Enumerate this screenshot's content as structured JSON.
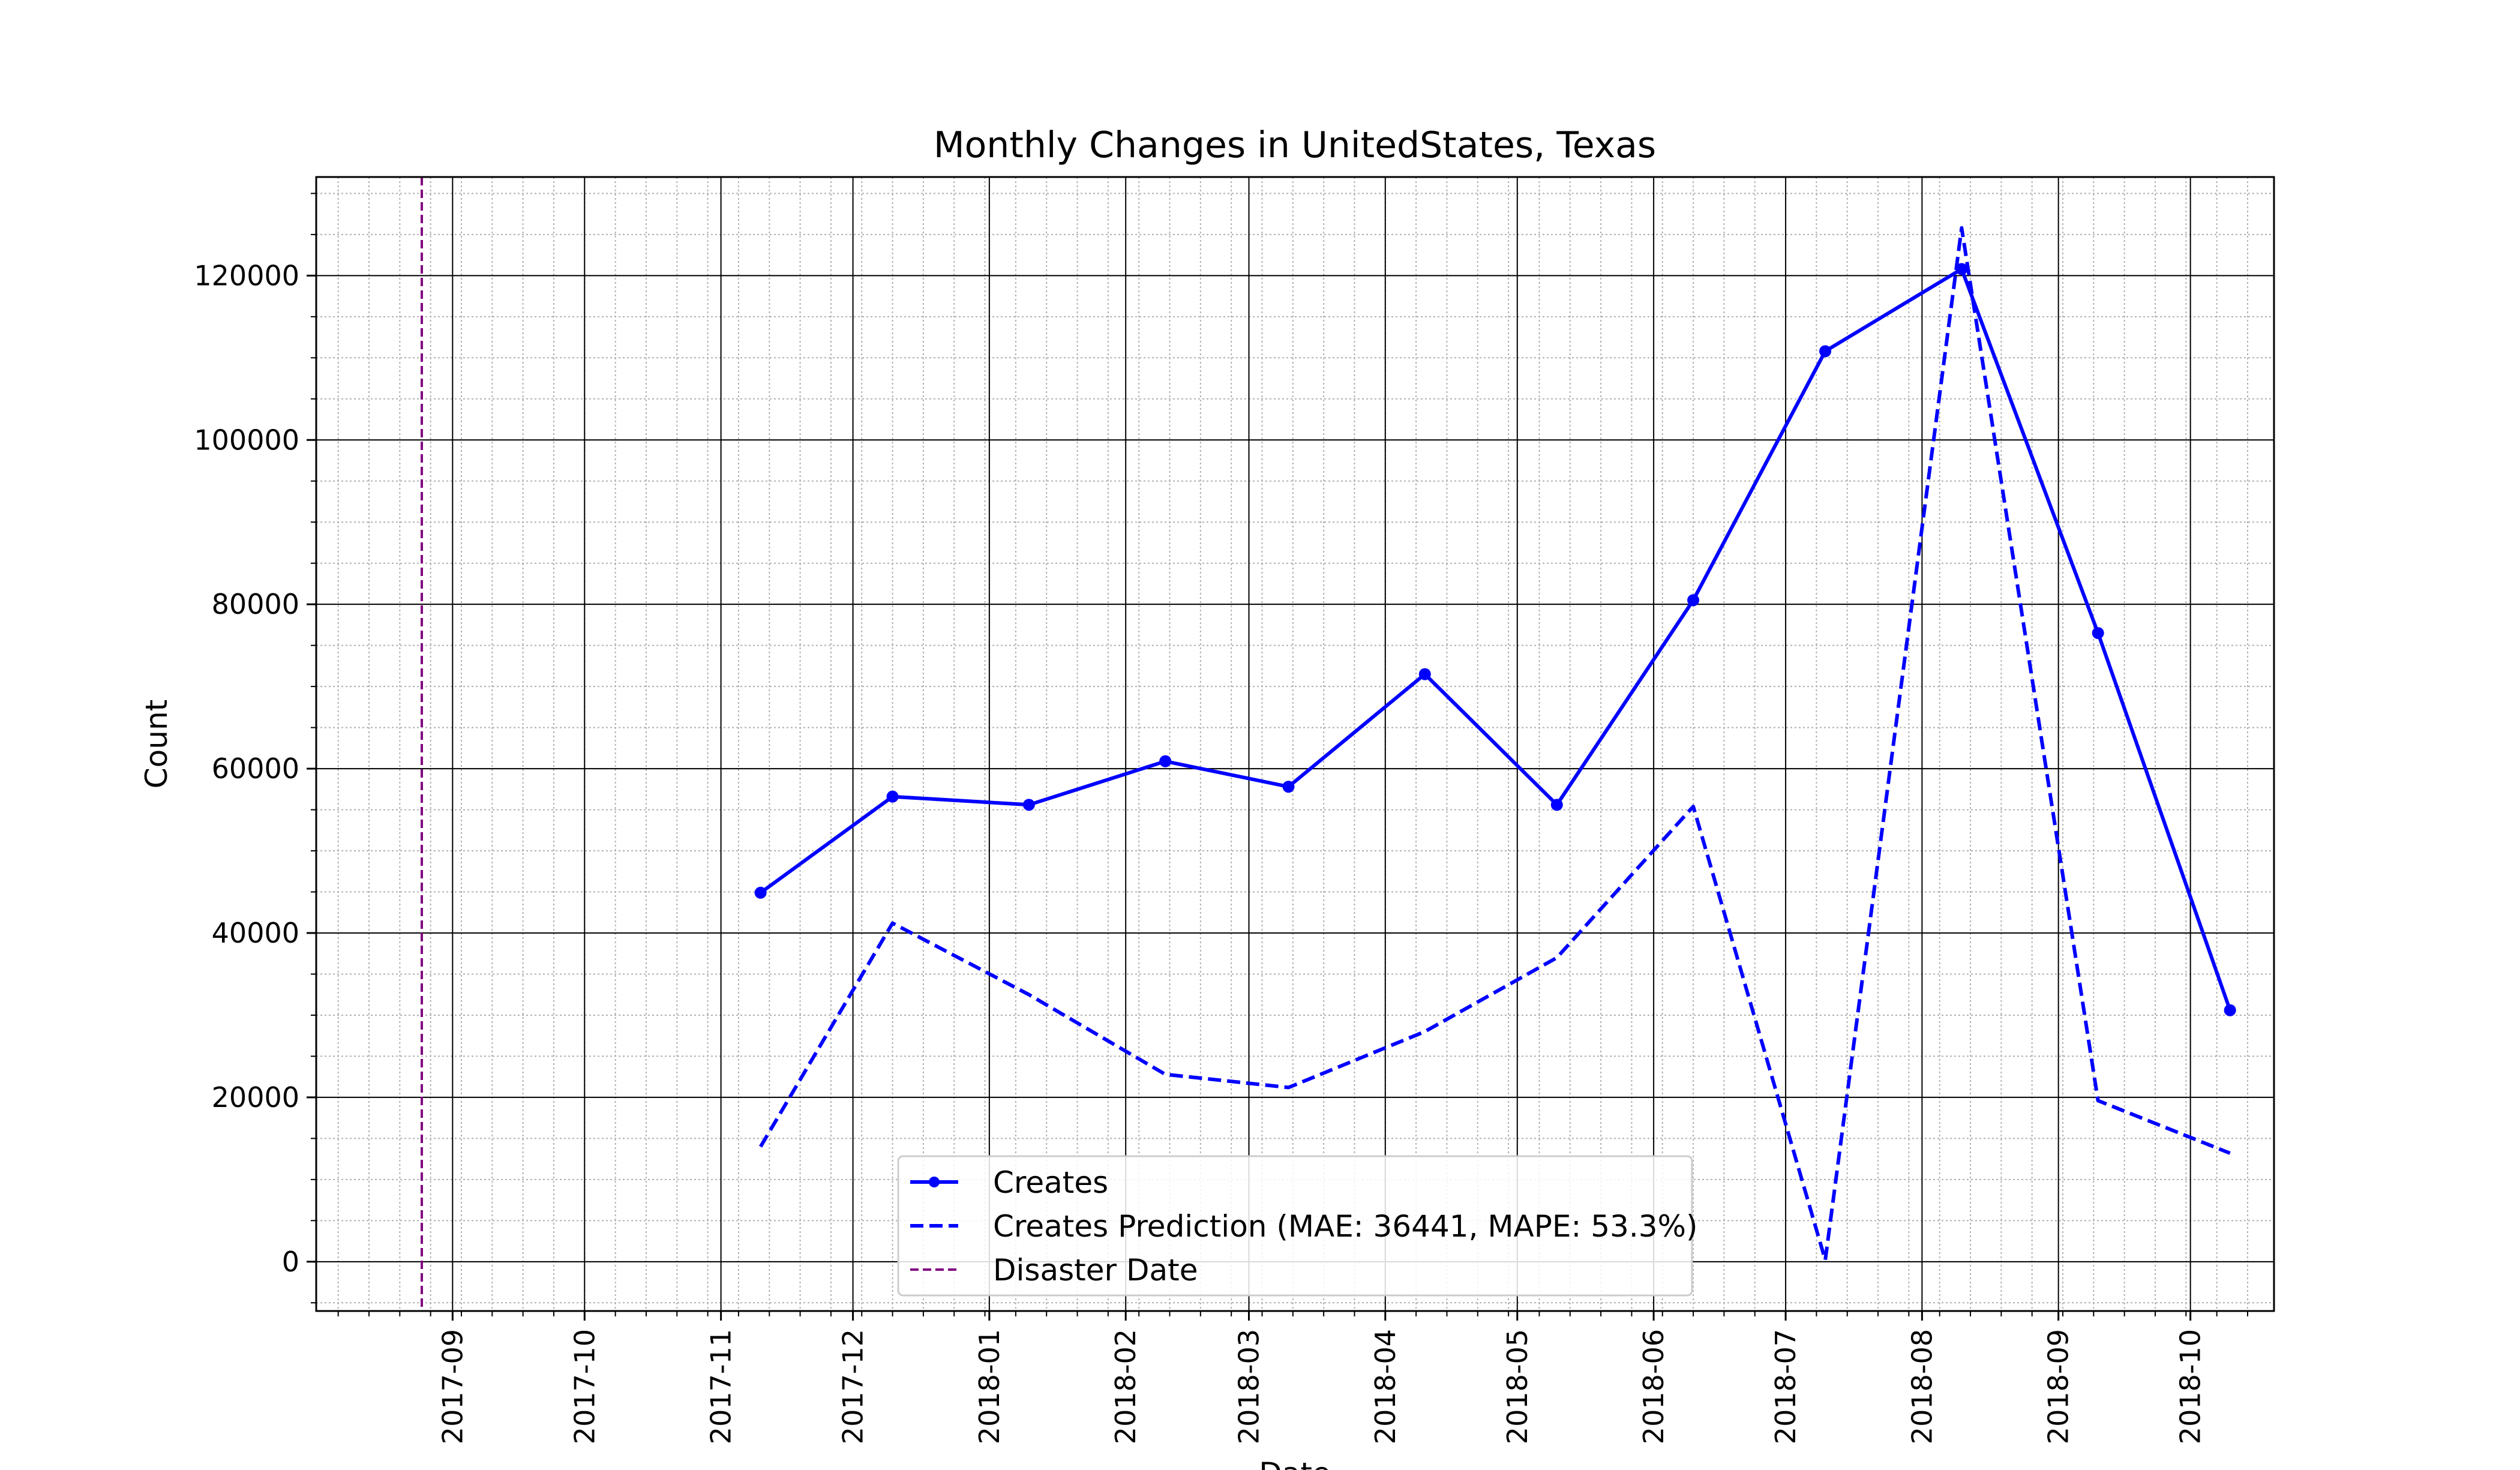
{
  "chart_data": {
    "type": "line",
    "title": "Monthly Changes in UnitedStates, Texas",
    "xlabel": "Date",
    "ylabel": "Count",
    "x_type": "date",
    "xlim": [
      "2017-08-01",
      "2018-10-20"
    ],
    "ylim": [
      -6000,
      132000
    ],
    "grid": {
      "major": true,
      "minor": true
    },
    "legend_position": "lower center",
    "x_ticks": [
      "2017-09-01",
      "2017-10-01",
      "2017-11-01",
      "2017-12-01",
      "2018-01-01",
      "2018-02-01",
      "2018-03-01",
      "2018-04-01",
      "2018-05-01",
      "2018-06-01",
      "2018-07-01",
      "2018-08-01",
      "2018-09-01",
      "2018-10-01"
    ],
    "x_tick_labels": [
      "2017-09",
      "2017-10",
      "2017-11",
      "2017-12",
      "2018-01",
      "2018-02",
      "2018-03",
      "2018-04",
      "2018-05",
      "2018-06",
      "2018-07",
      "2018-08",
      "2018-09",
      "2018-10"
    ],
    "y_ticks": [
      0,
      20000,
      40000,
      60000,
      80000,
      100000,
      120000
    ],
    "y_tick_labels": [
      "0",
      "20000",
      "40000",
      "60000",
      "80000",
      "100000",
      "120000"
    ],
    "series": [
      {
        "name": "Creates",
        "color": "#0000ff",
        "style": "solid",
        "marker": "circle",
        "points": [
          {
            "x": "2017-11-10",
            "y": 44900
          },
          {
            "x": "2017-12-10",
            "y": 56600
          },
          {
            "x": "2018-01-10",
            "y": 55600
          },
          {
            "x": "2018-02-10",
            "y": 60900
          },
          {
            "x": "2018-03-10",
            "y": 57800
          },
          {
            "x": "2018-04-10",
            "y": 71500
          },
          {
            "x": "2018-05-10",
            "y": 55600
          },
          {
            "x": "2018-06-10",
            "y": 80500
          },
          {
            "x": "2018-07-10",
            "y": 110800
          },
          {
            "x": "2018-08-10",
            "y": 120800
          },
          {
            "x": "2018-09-10",
            "y": 76500
          },
          {
            "x": "2018-10-10",
            "y": 30600
          }
        ]
      },
      {
        "name": "Creates Prediction (MAE: 36441, MAPE: 53.3%)",
        "color": "#0000ff",
        "style": "dashed",
        "marker": "none",
        "points": [
          {
            "x": "2017-11-10",
            "y": 14000
          },
          {
            "x": "2017-12-10",
            "y": 41200
          },
          {
            "x": "2018-01-10",
            "y": 32500
          },
          {
            "x": "2018-02-10",
            "y": 22800
          },
          {
            "x": "2018-03-10",
            "y": 21200
          },
          {
            "x": "2018-04-10",
            "y": 28000
          },
          {
            "x": "2018-05-10",
            "y": 37000
          },
          {
            "x": "2018-06-10",
            "y": 55400
          },
          {
            "x": "2018-07-10",
            "y": 200
          },
          {
            "x": "2018-08-10",
            "y": 125800
          },
          {
            "x": "2018-09-10",
            "y": 19600
          },
          {
            "x": "2018-10-10",
            "y": 13200
          }
        ]
      }
    ],
    "vlines": [
      {
        "name": "Disaster Date",
        "x": "2017-08-25",
        "color": "#800080",
        "style": "dashed"
      }
    ]
  }
}
